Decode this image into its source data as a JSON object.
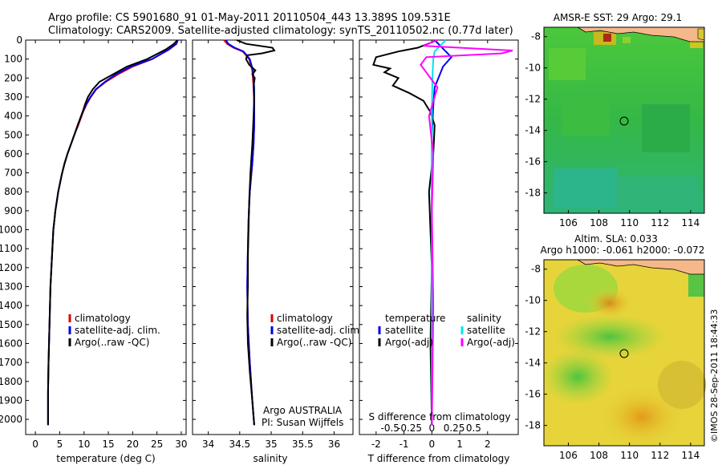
{
  "header": {
    "line1": "Argo profile: CS 5901680_91 01-May-2011 20110504_443 13.389S 109.531E",
    "line2": "Climatology: CARS2009. Satellite-adjusted climatology: synTS_20110502.nc (0.77d later)"
  },
  "credit": "©IMOS 28-Sep-2011 18:44:33",
  "colors": {
    "climatology": "#dd0000",
    "satellite": "#0000ee",
    "argo": "#000000",
    "sal_satellite": "#00e5ee",
    "sal_argo": "#ff00ff"
  },
  "chart_data": [
    {
      "type": "line",
      "id": "temperature",
      "xlabel": "temperature (deg C)",
      "ylabel": "",
      "xlim": [
        -2,
        31
      ],
      "ylim": [
        2080,
        0
      ],
      "xticks": [
        "0",
        "5",
        "10",
        "15",
        "20",
        "25",
        "30"
      ],
      "xtick_values": [
        0,
        5,
        10,
        15,
        20,
        25,
        30
      ],
      "yticks": [
        "0",
        "100",
        "200",
        "300",
        "400",
        "500",
        "600",
        "700",
        "800",
        "900",
        "1000",
        "1100",
        "1200",
        "1300",
        "1400",
        "1500",
        "1600",
        "1700",
        "1800",
        "1900",
        "2000"
      ],
      "ytick_values": [
        0,
        100,
        200,
        300,
        400,
        500,
        600,
        700,
        800,
        900,
        1000,
        1100,
        1200,
        1300,
        1400,
        1500,
        1600,
        1700,
        1800,
        1900,
        2000
      ],
      "legend": [
        "climatology",
        "satellite-adj. clim.",
        "Argo(..raw -QC)"
      ],
      "series": [
        {
          "name": "climatology",
          "color": "#dd0000",
          "x": [
            29.2,
            29.0,
            27.5,
            24,
            20,
            17,
            14.5,
            12.5,
            11.4,
            10.5,
            9.8,
            8.8,
            8.0,
            7.3,
            6.6,
            6.0,
            5.5,
            5.1,
            4.7,
            4.4,
            4.1,
            3.9,
            3.7,
            3.5,
            3.3,
            3.1,
            3.0,
            2.9,
            2.8,
            2.7,
            2.6,
            2.6
          ],
          "y": [
            0,
            20,
            50,
            100,
            140,
            180,
            220,
            260,
            300,
            340,
            380,
            450,
            500,
            550,
            600,
            650,
            700,
            750,
            800,
            850,
            900,
            950,
            1000,
            1100,
            1200,
            1300,
            1400,
            1500,
            1600,
            1700,
            1850,
            2030
          ]
        },
        {
          "name": "satellite-adj. clim.",
          "color": "#0000ee",
          "x": [
            29.3,
            29.0,
            27.4,
            24,
            19.6,
            16.6,
            14.3,
            12.4,
            11.3,
            10.4,
            9.7,
            8.7,
            8.0,
            7.3,
            6.6,
            6.0,
            5.5,
            5.1,
            4.7,
            4.4,
            4.1,
            3.9,
            3.7,
            3.5,
            3.3,
            3.1,
            3.0,
            2.9,
            2.8,
            2.7,
            2.6,
            2.6
          ],
          "y": [
            0,
            20,
            50,
            100,
            140,
            180,
            220,
            260,
            300,
            340,
            380,
            450,
            500,
            550,
            600,
            650,
            700,
            750,
            800,
            850,
            900,
            950,
            1000,
            1100,
            1200,
            1300,
            1400,
            1500,
            1600,
            1700,
            1850,
            2030
          ]
        },
        {
          "name": "Argo(..raw -QC)",
          "color": "#000000",
          "x": [
            29.2,
            28.5,
            26.8,
            23,
            18.8,
            16,
            13.2,
            11.8,
            10.8,
            10.2,
            9.7,
            8.7,
            8.0,
            7.3,
            6.6,
            6.0,
            5.5,
            5.1,
            4.7,
            4.4,
            4.1,
            3.9,
            3.7,
            3.5,
            3.3,
            3.1,
            3.0,
            2.9,
            2.8,
            2.7,
            2.6,
            2.6
          ],
          "y": [
            0,
            20,
            50,
            100,
            140,
            180,
            220,
            260,
            300,
            340,
            380,
            450,
            500,
            550,
            600,
            650,
            700,
            750,
            800,
            850,
            900,
            950,
            1000,
            1100,
            1200,
            1300,
            1400,
            1500,
            1600,
            1700,
            1850,
            2030
          ]
        }
      ]
    },
    {
      "type": "line",
      "id": "salinity",
      "xlabel": "salinity",
      "ylabel": "",
      "xlim": [
        33.75,
        36.3
      ],
      "ylim": [
        2080,
        0
      ],
      "xticks": [
        "34",
        "34.5",
        "35",
        "35.5",
        "36"
      ],
      "xtick_values": [
        34,
        34.5,
        35,
        35.5,
        36
      ],
      "legend": [
        "climatology",
        "satellite-adj. clim.",
        "Argo(..raw -QC)"
      ],
      "annotation": [
        "Argo AUSTRALIA",
        "PI: Susan Wijffels"
      ],
      "series": [
        {
          "name": "climatology",
          "color": "#dd0000",
          "x": [
            34.25,
            34.3,
            34.4,
            34.55,
            34.65,
            34.7,
            34.72,
            34.73,
            34.73,
            34.72,
            34.7,
            34.66,
            34.64,
            34.63,
            34.62,
            34.63,
            34.66,
            34.7,
            34.73
          ],
          "y": [
            0,
            20,
            40,
            60,
            100,
            160,
            250,
            350,
            450,
            550,
            650,
            800,
            950,
            1100,
            1300,
            1500,
            1700,
            1900,
            2030
          ]
        },
        {
          "name": "satellite-adj. clim.",
          "color": "#0000ee",
          "x": [
            34.28,
            34.32,
            34.42,
            34.56,
            34.66,
            34.71,
            34.73,
            34.73,
            34.73,
            34.72,
            34.7,
            34.66,
            34.64,
            34.63,
            34.62,
            34.63,
            34.66,
            34.7,
            34.73
          ],
          "y": [
            0,
            20,
            40,
            60,
            100,
            160,
            250,
            350,
            450,
            550,
            650,
            800,
            950,
            1100,
            1300,
            1500,
            1700,
            1900,
            2030
          ]
        },
        {
          "name": "Argo(..raw -QC)",
          "color": "#000000",
          "x": [
            34.45,
            34.6,
            35.02,
            35.05,
            34.85,
            34.62,
            34.6,
            34.65,
            34.75,
            34.7,
            34.74,
            34.72,
            34.73,
            34.72,
            34.7,
            34.67,
            34.65,
            34.64,
            34.63,
            34.63,
            34.62,
            34.63,
            34.66,
            34.7,
            34.73
          ],
          "y": [
            0,
            20,
            40,
            55,
            70,
            80,
            100,
            130,
            160,
            180,
            200,
            240,
            300,
            400,
            550,
            700,
            850,
            1000,
            1150,
            1300,
            1450,
            1600,
            1750,
            1900,
            2030
          ]
        }
      ]
    },
    {
      "type": "line",
      "id": "difference",
      "xlabel": "T difference from climatology",
      "ylabel": "",
      "title_secondary": "S difference from climatology",
      "xlim": [
        -2.6,
        3.1
      ],
      "ylim": [
        2080,
        0
      ],
      "xticks": [
        "-2",
        "-1",
        "0",
        "1",
        "2"
      ],
      "xtick_values": [
        -2,
        -1,
        0,
        1,
        2
      ],
      "xticks_top": [
        "-0.5",
        "-0.25",
        "0",
        "0.25",
        "0.5"
      ],
      "xtick_top_values": [
        -1.5,
        -0.8,
        0,
        0.8,
        1.5
      ],
      "legend_temperature": {
        "title": "temperature",
        "items": [
          "satellite",
          "Argo(-adj)"
        ]
      },
      "legend_salinity": {
        "title": "salinity",
        "items": [
          "satellite",
          "Argo(-adj)"
        ]
      },
      "series": [
        {
          "name": "temperature satellite",
          "color": "#0000ee",
          "x": [
            0.1,
            0.5,
            0.7,
            0.4,
            0.1,
            0.05,
            0.0,
            0.0,
            0.0,
            0.0
          ],
          "y": [
            0,
            60,
            90,
            140,
            250,
            350,
            500,
            800,
            1400,
            2030
          ]
        },
        {
          "name": "temperature Argo(-adj)",
          "color": "#000000",
          "x": [
            0.2,
            -0.5,
            -1.2,
            -2.0,
            -2.1,
            -1.5,
            -1.7,
            -1.2,
            -1.4,
            -0.8,
            -0.3,
            -0.05,
            0.1,
            0.05,
            -0.1,
            0.0,
            -0.05,
            0.0
          ],
          "y": [
            0,
            40,
            60,
            90,
            130,
            150,
            170,
            200,
            240,
            280,
            320,
            380,
            450,
            600,
            800,
            1200,
            1600,
            2030
          ]
        },
        {
          "name": "salinity satellite",
          "color": "#00e5ee",
          "x": [
            0.5,
            0.3,
            0.1,
            0.05,
            0.02,
            0.0,
            0.0,
            0.0,
            0.0
          ],
          "y": [
            0,
            30,
            60,
            100,
            200,
            400,
            800,
            1400,
            2030
          ]
        },
        {
          "name": "salinity Argo(-adj)",
          "color": "#ff00ff",
          "x": [
            0.2,
            -0.3,
            2.9,
            2.5,
            -0.2,
            -0.4,
            0.2,
            -0.1,
            0.05,
            0.0,
            0.05,
            0.0
          ],
          "y": [
            0,
            30,
            55,
            70,
            90,
            130,
            250,
            400,
            600,
            900,
            1400,
            2030
          ]
        }
      ]
    },
    {
      "type": "heatmap",
      "id": "sst_map",
      "title": "AMSR-E SST: 29 Argo: 29.1",
      "xticks": [
        "106",
        "108",
        "110",
        "112",
        "114"
      ],
      "xtick_values": [
        106,
        108,
        110,
        112,
        114
      ],
      "yticks": [
        "-8",
        "-10",
        "-12",
        "-14",
        "-16",
        "-18"
      ],
      "ytick_values": [
        -8,
        -10,
        -12,
        -14,
        -16,
        -18
      ],
      "xlim": [
        104.4,
        114.9
      ],
      "ylim": [
        -19.3,
        -7.4
      ],
      "marker": {
        "lon": 109.531,
        "lat": -13.389
      }
    },
    {
      "type": "heatmap",
      "id": "sla_map",
      "title": "Altim. SLA: 0.033",
      "subtitle": "Argo h1000: -0.061 h2000: -0.072",
      "xticks": [
        "106",
        "108",
        "110",
        "112",
        "114"
      ],
      "xtick_values": [
        106,
        108,
        110,
        112,
        114
      ],
      "yticks": [
        "-8",
        "-10",
        "-12",
        "-14",
        "-16",
        "-18"
      ],
      "ytick_values": [
        -8,
        -10,
        -12,
        -14,
        -16,
        -18
      ],
      "xlim": [
        104.4,
        114.9
      ],
      "ylim": [
        -19.3,
        -7.4
      ],
      "marker": {
        "lon": 109.531,
        "lat": -13.389
      }
    }
  ]
}
